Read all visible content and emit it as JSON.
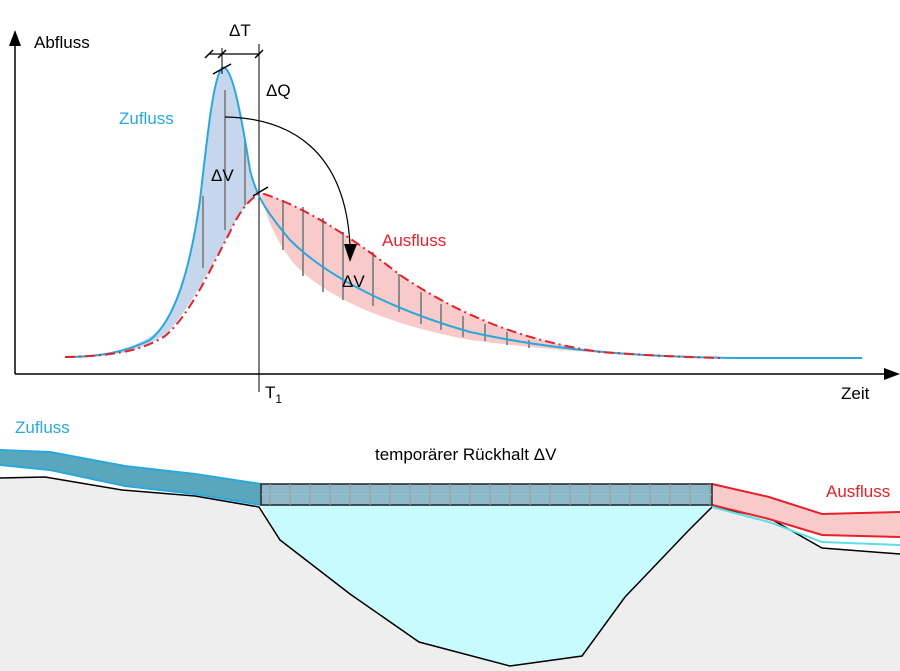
{
  "hydrograph": {
    "y_axis_label": "Abfluss",
    "x_axis_label": "Zeit",
    "delta_t_label": "ΔT",
    "delta_q_label": "ΔQ",
    "t1_label": "T",
    "t1_subscript": "1",
    "inflow_label": "Zufluss",
    "outflow_label": "Ausfluss",
    "delta_v_upper_label": "ΔV",
    "delta_v_lower_label": "ΔV"
  },
  "section": {
    "inflow_label": "Zufluss",
    "outflow_label": "Ausfluss",
    "retention_label": "temporärer Rückhalt ΔV"
  },
  "colors": {
    "inflow": "#2aa8dc",
    "outflow": "#e8202a",
    "inflow_fill": "#c6d6ec",
    "outflow_fill": "#f8caca",
    "reservoir_fill": "#c8fbfd",
    "ground_fill": "#eeeeee"
  }
}
